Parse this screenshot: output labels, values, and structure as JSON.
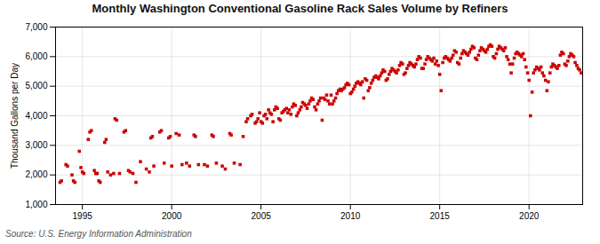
{
  "chart_data": {
    "type": "scatter",
    "title": "Monthly Washington Conventional Gasoline Rack Sales Volume by Refiners",
    "ylabel": "Thousand Gallons per Day",
    "source": "Source: U.S. Energy Information Administration",
    "color": "#cc0000",
    "marker": "square",
    "grid": true,
    "xlim": [
      1993.5,
      2023.0
    ],
    "xticks": [
      1995,
      2000,
      2005,
      2010,
      2015,
      2020
    ],
    "ylim": [
      1000,
      7000
    ],
    "yticks": [
      {
        "value": 1000,
        "label": "1,000"
      },
      {
        "value": 2000,
        "label": "2,000"
      },
      {
        "value": 3000,
        "label": "3,000"
      },
      {
        "value": 4000,
        "label": "4,000"
      },
      {
        "value": 5000,
        "label": "5,000"
      },
      {
        "value": 6000,
        "label": "6,000"
      },
      {
        "value": 7000,
        "label": "7,000"
      }
    ],
    "x": [
      1993.75,
      1993.83,
      1994.08,
      1994.17,
      1994.42,
      1994.5,
      1994.58,
      1994.83,
      1994.92,
      1995.0,
      1995.08,
      1995.33,
      1995.42,
      1995.5,
      1995.67,
      1995.75,
      1995.83,
      1995.92,
      1996.0,
      1996.25,
      1996.33,
      1996.42,
      1996.58,
      1996.75,
      1996.83,
      1996.92,
      1997.08,
      1997.33,
      1997.42,
      1997.58,
      1997.67,
      1997.83,
      1998.0,
      1998.25,
      1998.58,
      1998.75,
      1998.83,
      1998.92,
      1999.0,
      1999.33,
      1999.42,
      1999.58,
      1999.83,
      1999.92,
      2000.0,
      2000.25,
      2000.42,
      2000.58,
      2000.83,
      2001.0,
      2001.25,
      2001.33,
      2001.5,
      2001.83,
      2002.0,
      2002.25,
      2002.33,
      2002.5,
      2002.83,
      2003.0,
      2003.25,
      2003.33,
      2003.5,
      2003.83,
      2004.0,
      2004.17,
      2004.25,
      2004.42,
      2004.5,
      2004.67,
      2004.75,
      2004.83,
      2004.92,
      2005.0,
      2005.08,
      2005.17,
      2005.25,
      2005.33,
      2005.42,
      2005.5,
      2005.58,
      2005.67,
      2005.75,
      2005.83,
      2005.92,
      2006.0,
      2006.08,
      2006.17,
      2006.25,
      2006.33,
      2006.42,
      2006.5,
      2006.58,
      2006.67,
      2006.75,
      2006.83,
      2006.92,
      2007.0,
      2007.08,
      2007.17,
      2007.25,
      2007.33,
      2007.42,
      2007.5,
      2007.58,
      2007.67,
      2007.75,
      2007.83,
      2007.92,
      2008.0,
      2008.08,
      2008.17,
      2008.25,
      2008.33,
      2008.42,
      2008.5,
      2008.58,
      2008.67,
      2008.75,
      2008.83,
      2008.92,
      2009.0,
      2009.08,
      2009.17,
      2009.25,
      2009.33,
      2009.42,
      2009.5,
      2009.58,
      2009.67,
      2009.75,
      2009.83,
      2009.92,
      2010.0,
      2010.08,
      2010.17,
      2010.25,
      2010.33,
      2010.42,
      2010.5,
      2010.58,
      2010.67,
      2010.75,
      2010.83,
      2010.92,
      2011.0,
      2011.08,
      2011.17,
      2011.25,
      2011.33,
      2011.42,
      2011.5,
      2011.58,
      2011.67,
      2011.75,
      2011.83,
      2011.92,
      2012.0,
      2012.08,
      2012.17,
      2012.25,
      2012.33,
      2012.42,
      2012.5,
      2012.58,
      2012.67,
      2012.75,
      2012.83,
      2012.92,
      2013.0,
      2013.08,
      2013.17,
      2013.25,
      2013.33,
      2013.42,
      2013.5,
      2013.58,
      2013.67,
      2013.75,
      2013.83,
      2013.92,
      2014.0,
      2014.08,
      2014.17,
      2014.25,
      2014.33,
      2014.42,
      2014.5,
      2014.58,
      2014.67,
      2014.75,
      2014.83,
      2014.92,
      2015.0,
      2015.08,
      2015.17,
      2015.25,
      2015.33,
      2015.42,
      2015.5,
      2015.58,
      2015.67,
      2015.75,
      2015.83,
      2015.92,
      2016.0,
      2016.08,
      2016.17,
      2016.25,
      2016.33,
      2016.42,
      2016.5,
      2016.58,
      2016.67,
      2016.75,
      2016.83,
      2016.92,
      2017.0,
      2017.08,
      2017.17,
      2017.25,
      2017.33,
      2017.42,
      2017.5,
      2017.58,
      2017.67,
      2017.75,
      2017.83,
      2017.92,
      2018.0,
      2018.08,
      2018.17,
      2018.25,
      2018.33,
      2018.42,
      2018.5,
      2018.58,
      2018.67,
      2018.75,
      2018.83,
      2018.92,
      2019.0,
      2019.08,
      2019.17,
      2019.25,
      2019.33,
      2019.42,
      2019.5,
      2019.58,
      2019.67,
      2019.75,
      2019.83,
      2019.92,
      2020.0,
      2020.08,
      2020.17,
      2020.25,
      2020.33,
      2020.42,
      2020.5,
      2020.58,
      2020.67,
      2020.75,
      2020.83,
      2020.92,
      2021.0,
      2021.08,
      2021.17,
      2021.25,
      2021.33,
      2021.42,
      2021.5,
      2021.58,
      2021.67,
      2021.75,
      2021.83,
      2021.92,
      2022.0,
      2022.08,
      2022.17,
      2022.25,
      2022.33,
      2022.42,
      2022.5,
      2022.58,
      2022.67,
      2022.75,
      2022.83,
      2022.92
    ],
    "values": [
      1750,
      1800,
      2350,
      2300,
      2000,
      1800,
      1750,
      2800,
      2250,
      2100,
      2050,
      3200,
      3450,
      3500,
      2150,
      2050,
      2050,
      1800,
      1750,
      3100,
      3200,
      2100,
      2000,
      2050,
      3900,
      3850,
      2050,
      3450,
      3500,
      2150,
      2100,
      2050,
      1750,
      2450,
      2200,
      2100,
      3250,
      3300,
      2300,
      3450,
      3500,
      2400,
      3250,
      3300,
      2300,
      3400,
      3350,
      2350,
      2400,
      2300,
      3350,
      3300,
      2350,
      2350,
      2300,
      3350,
      3300,
      2400,
      2300,
      2200,
      3400,
      3350,
      2400,
      2350,
      3300,
      3800,
      3900,
      4000,
      4050,
      3750,
      3800,
      3900,
      4100,
      3800,
      3750,
      4000,
      4050,
      3900,
      4200,
      4100,
      4050,
      3800,
      4200,
      4300,
      4250,
      3900,
      3850,
      4100,
      4150,
      4200,
      4250,
      4100,
      4200,
      4050,
      4300,
      4400,
      4350,
      4000,
      4100,
      4200,
      4300,
      4450,
      4400,
      4350,
      4250,
      4400,
      4500,
      4600,
      4550,
      4300,
      4200,
      4400,
      4500,
      4600,
      3850,
      4600,
      4550,
      4700,
      4500,
      4400,
      4700,
      4400,
      4500,
      4600,
      4750,
      4850,
      4900,
      4850,
      4900,
      4950,
      5050,
      5100,
      5050,
      4750,
      4800,
      4900,
      5000,
      5100,
      5150,
      5100,
      5050,
      5150,
      4600,
      5250,
      5200,
      4850,
      4950,
      5100,
      5200,
      5300,
      5350,
      5300,
      5250,
      5350,
      5450,
      5550,
      5500,
      5200,
      5250,
      5400,
      5500,
      5600,
      5550,
      5500,
      5450,
      5550,
      5700,
      5800,
      5750,
      5400,
      5450,
      5600,
      5700,
      5800,
      5750,
      5700,
      5650,
      5750,
      5900,
      6000,
      5950,
      5600,
      5600,
      5750,
      5900,
      6000,
      5950,
      5900,
      5850,
      5950,
      5750,
      5850,
      5700,
      5400,
      4850,
      5800,
      5950,
      6000,
      5950,
      5900,
      5850,
      5950,
      6050,
      6200,
      6150,
      5800,
      5750,
      5950,
      6100,
      6200,
      6150,
      6100,
      6050,
      6150,
      6250,
      6350,
      6300,
      5950,
      5900,
      6050,
      6200,
      6300,
      6250,
      6200,
      6150,
      6250,
      6350,
      6400,
      6350,
      6000,
      5950,
      6100,
      6250,
      6350,
      6300,
      6250,
      6200,
      6300,
      6000,
      5900,
      5750,
      5450,
      5750,
      5950,
      6100,
      6150,
      6100,
      6050,
      6000,
      6100,
      5900,
      5650,
      5450,
      5200,
      4000,
      4800,
      5450,
      5550,
      5650,
      5600,
      5550,
      5650,
      5450,
      5350,
      5200,
      4850,
      5150,
      5450,
      5650,
      5750,
      5700,
      5650,
      5600,
      5700,
      6050,
      6150,
      6100,
      5750,
      5700,
      5850,
      6000,
      6100,
      6050,
      6000,
      5800,
      5700,
      5600,
      5550,
      5450
    ]
  }
}
